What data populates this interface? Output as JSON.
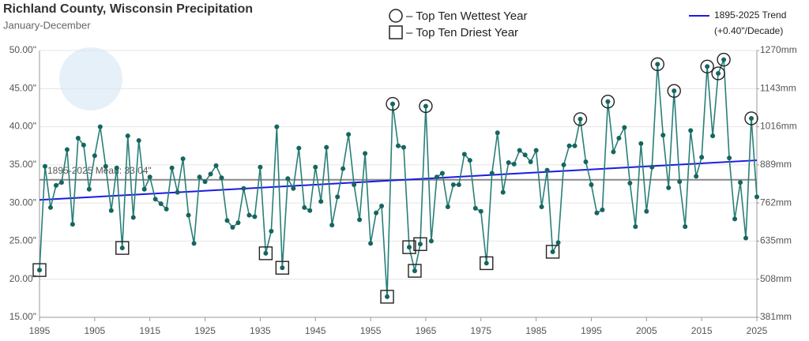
{
  "chart_data": {
    "type": "line",
    "title": "Richland County, Wisconsin Precipitation",
    "subtitle": "January-December",
    "x": [
      1895,
      1896,
      1897,
      1898,
      1899,
      1900,
      1901,
      1902,
      1903,
      1904,
      1905,
      1906,
      1907,
      1908,
      1909,
      1910,
      1911,
      1912,
      1913,
      1914,
      1915,
      1916,
      1917,
      1918,
      1919,
      1920,
      1921,
      1922,
      1923,
      1924,
      1925,
      1926,
      1927,
      1928,
      1929,
      1930,
      1931,
      1932,
      1933,
      1934,
      1935,
      1936,
      1937,
      1938,
      1939,
      1940,
      1941,
      1942,
      1943,
      1944,
      1945,
      1946,
      1947,
      1948,
      1949,
      1950,
      1951,
      1952,
      1953,
      1954,
      1955,
      1956,
      1957,
      1958,
      1959,
      1960,
      1961,
      1962,
      1963,
      1964,
      1965,
      1966,
      1967,
      1968,
      1969,
      1970,
      1971,
      1972,
      1973,
      1974,
      1975,
      1976,
      1977,
      1978,
      1979,
      1980,
      1981,
      1982,
      1983,
      1984,
      1985,
      1986,
      1987,
      1988,
      1989,
      1990,
      1991,
      1992,
      1993,
      1994,
      1995,
      1996,
      1997,
      1998,
      1999,
      2000,
      2001,
      2002,
      2003,
      2004,
      2005,
      2006,
      2007,
      2008,
      2009,
      2010,
      2011,
      2012,
      2013,
      2014,
      2015,
      2016,
      2017,
      2018,
      2019,
      2020,
      2021,
      2022,
      2023,
      2024,
      2025
    ],
    "series": [
      {
        "name": "Precipitation",
        "color": "#2a7f78",
        "values": [
          21.2,
          34.8,
          29.4,
          32.3,
          32.7,
          37.0,
          27.2,
          38.5,
          37.6,
          31.8,
          36.2,
          40.0,
          34.8,
          29.0,
          34.6,
          24.1,
          38.8,
          28.1,
          38.2,
          31.8,
          33.4,
          30.5,
          29.9,
          29.2,
          34.6,
          31.4,
          35.8,
          28.4,
          24.7,
          33.4,
          32.8,
          33.8,
          34.9,
          33.3,
          27.7,
          26.8,
          27.4,
          31.9,
          28.4,
          28.2,
          34.7,
          23.4,
          26.3,
          40.0,
          21.5,
          33.2,
          31.9,
          37.2,
          29.4,
          29.0,
          34.7,
          30.2,
          37.3,
          27.1,
          30.8,
          34.5,
          39.0,
          32.4,
          27.8,
          36.5,
          24.7,
          28.7,
          29.6,
          17.7,
          43.0,
          37.5,
          37.3,
          24.2,
          21.1,
          24.6,
          42.7,
          25.0,
          33.4,
          33.9,
          29.5,
          32.4,
          32.4,
          36.4,
          35.6,
          29.3,
          28.9,
          22.1,
          33.9,
          39.2,
          31.4,
          35.3,
          35.1,
          36.9,
          36.3,
          35.4,
          36.9,
          29.5,
          34.3,
          23.6,
          24.8,
          35.0,
          37.5,
          37.5,
          41.0,
          35.4,
          32.4,
          28.7,
          29.1,
          43.3,
          36.7,
          38.5,
          39.9,
          32.6,
          26.9,
          37.8,
          28.9,
          34.7,
          48.2,
          38.9,
          32.0,
          44.7,
          32.8,
          26.9,
          39.5,
          33.5,
          36.0,
          47.9,
          38.8,
          47.0,
          48.8,
          35.9,
          27.9,
          32.7,
          25.4,
          41.1,
          30.8
        ]
      }
    ],
    "wettest_legend": "– Top Ten Wettest Year",
    "driest_legend": "– Top Ten Driest Year",
    "wettest_years": [
      1959,
      1965,
      1993,
      1998,
      2007,
      2010,
      2016,
      2018,
      2019,
      2024
    ],
    "driest_years": [
      1895,
      1910,
      1936,
      1939,
      1958,
      1962,
      1963,
      1964,
      1976,
      1988
    ],
    "mean": {
      "value": 33.04,
      "label": "1895-2025 Mean: 33.04\""
    },
    "trend": {
      "name": "1895-2025 Trend",
      "label": "(+0.40\"/Decade)",
      "color": "#1a1ae6",
      "start": 30.4,
      "end": 35.6
    },
    "xlim": [
      1895,
      2025
    ],
    "xticks": [
      1895,
      1905,
      1915,
      1925,
      1935,
      1945,
      1955,
      1965,
      1975,
      1985,
      1995,
      2005,
      2015,
      2025
    ],
    "ylim": [
      15,
      50
    ],
    "yticks": [
      {
        "value": 15,
        "label": "15.00\""
      },
      {
        "value": 20,
        "label": "20.00\""
      },
      {
        "value": 25,
        "label": "25.00\""
      },
      {
        "value": 30,
        "label": "30.00\""
      },
      {
        "value": 35,
        "label": "35.00\""
      },
      {
        "value": 40,
        "label": "40.00\""
      },
      {
        "value": 45,
        "label": "45.00\""
      },
      {
        "value": 50,
        "label": "50.00\""
      }
    ],
    "y2lim": [
      381,
      1270
    ],
    "y2ticks": [
      {
        "value": 381,
        "label": "381mm"
      },
      {
        "value": 508,
        "label": "508mm"
      },
      {
        "value": 635,
        "label": "635mm"
      },
      {
        "value": 762,
        "label": "762mm"
      },
      {
        "value": 889,
        "label": "889mm"
      },
      {
        "value": 1016,
        "label": "1016mm"
      },
      {
        "value": 1143,
        "label": "1143mm"
      },
      {
        "value": 1270,
        "label": "1270mm"
      }
    ],
    "grid": true
  }
}
